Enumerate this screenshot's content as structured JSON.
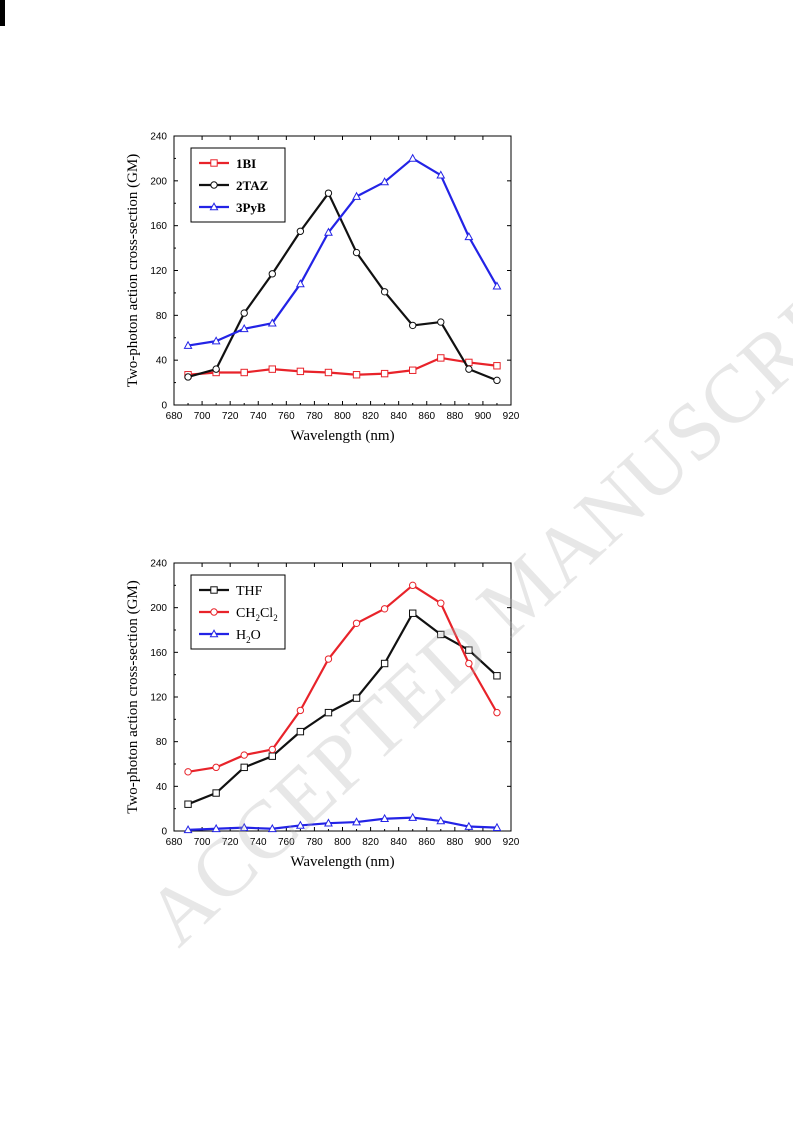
{
  "watermark": "ACCEPTED MANUSCRIPT",
  "chart_data": [
    {
      "type": "line",
      "xlabel": "Wavelength (nm)",
      "ylabel": "Two-photon action cross-section (GM)",
      "xlim": [
        680,
        920
      ],
      "ylim": [
        0,
        240
      ],
      "xticks": [
        "680",
        "700",
        "720",
        "740",
        "760",
        "780",
        "800",
        "820",
        "840",
        "860",
        "880",
        "900",
        "920"
      ],
      "yticks": [
        "0",
        "40",
        "80",
        "120",
        "160",
        "200",
        "240"
      ],
      "legend_position": "top-left",
      "series": [
        {
          "name": "1BI",
          "label_main": "1BI",
          "color": "#e8232a",
          "marker": "square",
          "x": [
            690,
            710,
            730,
            750,
            770,
            790,
            810,
            830,
            850,
            870,
            890,
            910
          ],
          "values": [
            27,
            29,
            29,
            32,
            30,
            29,
            27,
            28,
            31,
            42,
            38,
            35
          ]
        },
        {
          "name": "2TAZ",
          "label_main": "2TAZ",
          "color": "#111111",
          "marker": "circle",
          "x": [
            690,
            710,
            730,
            750,
            770,
            790,
            810,
            830,
            850,
            870,
            890,
            910
          ],
          "values": [
            25,
            32,
            82,
            117,
            155,
            189,
            136,
            101,
            71,
            74,
            32,
            22
          ]
        },
        {
          "name": "3PyB",
          "label_main": "3PyB",
          "color": "#2323e6",
          "marker": "triangle",
          "x": [
            690,
            710,
            730,
            750,
            770,
            790,
            810,
            830,
            850,
            870,
            890,
            910
          ],
          "values": [
            53,
            57,
            68,
            73,
            108,
            154,
            186,
            199,
            220,
            205,
            150,
            106
          ]
        }
      ]
    },
    {
      "type": "line",
      "xlabel": "Wavelength (nm)",
      "ylabel": "Two-photon action cross-section (GM)",
      "xlim": [
        680,
        920
      ],
      "ylim": [
        0,
        240
      ],
      "xticks": [
        "680",
        "700",
        "720",
        "740",
        "760",
        "780",
        "800",
        "820",
        "840",
        "860",
        "880",
        "900",
        "920"
      ],
      "yticks": [
        "0",
        "40",
        "80",
        "120",
        "160",
        "200",
        "240"
      ],
      "legend_position": "top-left",
      "series": [
        {
          "name": "THF",
          "label_main": "THF",
          "color": "#111111",
          "marker": "square",
          "x": [
            690,
            710,
            730,
            750,
            770,
            790,
            810,
            830,
            850,
            870,
            890,
            910
          ],
          "values": [
            24,
            34,
            57,
            67,
            89,
            106,
            119,
            150,
            195,
            176,
            162,
            139
          ]
        },
        {
          "name": "CH2Cl2",
          "label_main": "CH",
          "label_parts": [
            "CH",
            "2",
            "Cl",
            "2"
          ],
          "color": "#e8232a",
          "marker": "circle",
          "x": [
            690,
            710,
            730,
            750,
            770,
            790,
            810,
            830,
            850,
            870,
            890,
            910
          ],
          "values": [
            53,
            57,
            68,
            73,
            108,
            154,
            186,
            199,
            220,
            204,
            150,
            106
          ]
        },
        {
          "name": "H2O",
          "label_main": "H",
          "label_parts": [
            "H",
            "2",
            "O"
          ],
          "color": "#2323e6",
          "marker": "triangle",
          "x": [
            690,
            710,
            730,
            750,
            770,
            790,
            810,
            830,
            850,
            870,
            890,
            910
          ],
          "values": [
            1,
            2,
            3,
            2,
            5,
            7,
            8,
            11,
            12,
            9,
            4,
            3
          ]
        }
      ]
    }
  ]
}
